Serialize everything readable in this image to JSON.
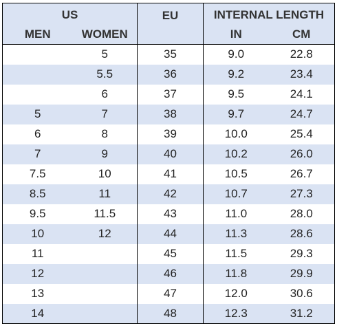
{
  "header": {
    "us": "US",
    "men": "MEN",
    "women": "WOMEN",
    "eu": "EU",
    "internal_length": "INTERNAL LENGTH",
    "in": "IN",
    "cm": "CM"
  },
  "rows": [
    {
      "men": "",
      "women": "5",
      "eu": "35",
      "in": "9.0",
      "cm": "22.8"
    },
    {
      "men": "",
      "women": "5.5",
      "eu": "36",
      "in": "9.2",
      "cm": "23.4"
    },
    {
      "men": "",
      "women": "6",
      "eu": "37",
      "in": "9.5",
      "cm": "24.1"
    },
    {
      "men": "5",
      "women": "7",
      "eu": "38",
      "in": "9.7",
      "cm": "24.7"
    },
    {
      "men": "6",
      "women": "8",
      "eu": "39",
      "in": "10.0",
      "cm": "25.4"
    },
    {
      "men": "7",
      "women": "9",
      "eu": "40",
      "in": "10.2",
      "cm": "26.0"
    },
    {
      "men": "7.5",
      "women": "10",
      "eu": "41",
      "in": "10.5",
      "cm": "26.7"
    },
    {
      "men": "8.5",
      "women": "11",
      "eu": "42",
      "in": "10.7",
      "cm": "27.3"
    },
    {
      "men": "9.5",
      "women": "11.5",
      "eu": "43",
      "in": "11.0",
      "cm": "28.0"
    },
    {
      "men": "10",
      "women": "12",
      "eu": "44",
      "in": "11.3",
      "cm": "28.6"
    },
    {
      "men": "11",
      "women": "",
      "eu": "45",
      "in": "11.5",
      "cm": "29.3"
    },
    {
      "men": "12",
      "women": "",
      "eu": "46",
      "in": "11.8",
      "cm": "29.9"
    },
    {
      "men": "13",
      "women": "",
      "eu": "47",
      "in": "12.0",
      "cm": "30.6"
    },
    {
      "men": "14",
      "women": "",
      "eu": "48",
      "in": "12.3",
      "cm": "31.2"
    }
  ],
  "colors": {
    "band": "#dae3f3",
    "border": "#000000"
  }
}
